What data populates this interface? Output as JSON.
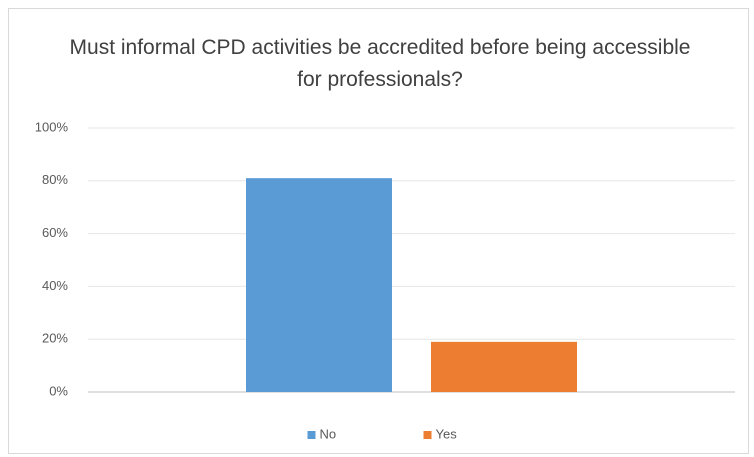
{
  "chart_data": {
    "type": "bar",
    "title": "Must informal CPD activities be accredited before being accessible for professionals?",
    "categories": [
      null
    ],
    "series": [
      {
        "name": "No",
        "color": "#5b9bd5",
        "values": [
          81
        ]
      },
      {
        "name": "Yes",
        "color": "#ed7d31",
        "values": [
          19
        ]
      }
    ],
    "ylim": [
      0,
      100
    ],
    "yticks": [
      {
        "value": 0,
        "label": "0%"
      },
      {
        "value": 20,
        "label": "20%"
      },
      {
        "value": 40,
        "label": "40%"
      },
      {
        "value": 60,
        "label": "60%"
      },
      {
        "value": 80,
        "label": "80%"
      },
      {
        "value": 100,
        "label": "100%"
      }
    ],
    "grid": true,
    "legend": "bottom"
  }
}
